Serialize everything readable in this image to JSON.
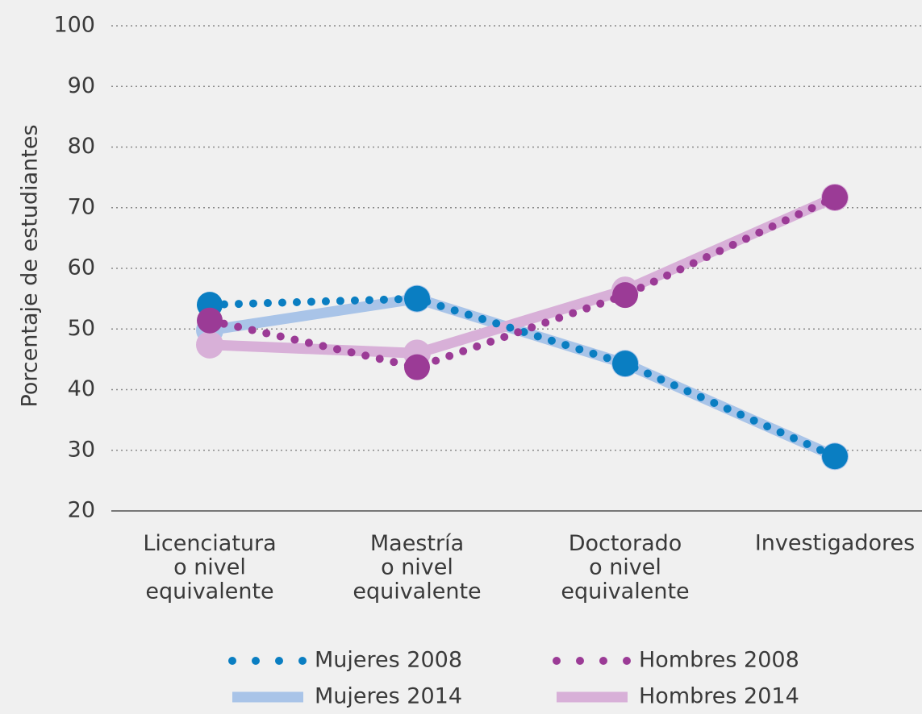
{
  "chart_data": {
    "type": "line",
    "y_label": "Porcentaje de estudiantes",
    "categories": [
      "Licenciatura\no nivel\nequivalente",
      "Maestría\no nivel\nequivalente",
      "Doctorado\no nivel\nequivalente",
      "Investigadores"
    ],
    "series": [
      {
        "name": "Mujeres 2008",
        "color": "#0a7ec2",
        "line_style": "dotted",
        "values": [
          54,
          55,
          44.3,
          29
        ]
      },
      {
        "name": "Hombres 2008",
        "color": "#9b3b96",
        "line_style": "dotted",
        "values": [
          51.4,
          43.7,
          55.6,
          71.7
        ]
      },
      {
        "name": "Mujeres 2014",
        "color": "#a9c4e8",
        "line_style": "solid",
        "values": [
          49.8,
          55,
          44.3,
          29
        ]
      },
      {
        "name": "Hombres 2014",
        "color": "#d8b0d8",
        "line_style": "solid",
        "values": [
          47.4,
          46,
          56.4,
          71.7
        ]
      }
    ],
    "ylim": [
      20,
      100
    ],
    "yticks": [
      20,
      30,
      40,
      50,
      60,
      70,
      80,
      90,
      100
    ],
    "grid": true
  }
}
